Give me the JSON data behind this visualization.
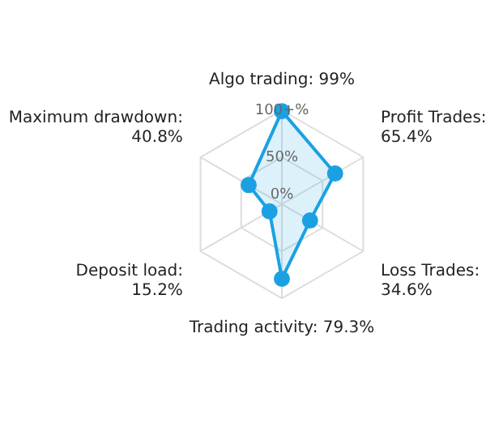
{
  "chart_data": {
    "type": "radar",
    "categories": [
      "Algo trading: 99%",
      "Profit Trades: 65.4%",
      "Loss Trades: 34.6%",
      "Trading activity: 79.3%",
      "Deposit load: 15.2%",
      "Maximum drawdown: 40.8%"
    ],
    "series": [
      {
        "color": "#1ba1e2",
        "values": [
          99,
          65.4,
          34.6,
          79.3,
          15.2,
          40.8
        ]
      }
    ],
    "ylim": [
      0,
      100
    ],
    "yticks": [
      {
        "value": 0,
        "label": "0%"
      },
      {
        "value": 50,
        "label": "50%"
      },
      {
        "value": 100,
        "label": "100+%"
      }
    ],
    "marker": "circle",
    "grid": true
  }
}
